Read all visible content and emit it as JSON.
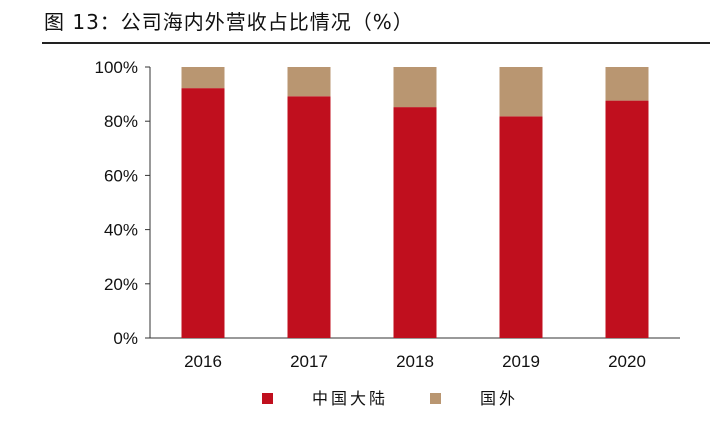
{
  "title": "图 13：公司海内外营收占比情况（%）",
  "chart_data": {
    "type": "bar",
    "stacked": true,
    "categories": [
      "2016",
      "2017",
      "2018",
      "2019",
      "2020"
    ],
    "series": [
      {
        "name": "中国大陆",
        "values": [
          92.2,
          89.2,
          85.2,
          81.8,
          87.6
        ],
        "color": "#C00F1E"
      },
      {
        "name": "国外",
        "values": [
          7.8,
          10.8,
          14.8,
          18.2,
          12.4
        ],
        "color": "#B99671"
      }
    ],
    "ylim": [
      0,
      100
    ],
    "yticks": [
      "0%",
      "20%",
      "40%",
      "60%",
      "80%",
      "100%"
    ],
    "grid": false,
    "legend": "bottom"
  }
}
